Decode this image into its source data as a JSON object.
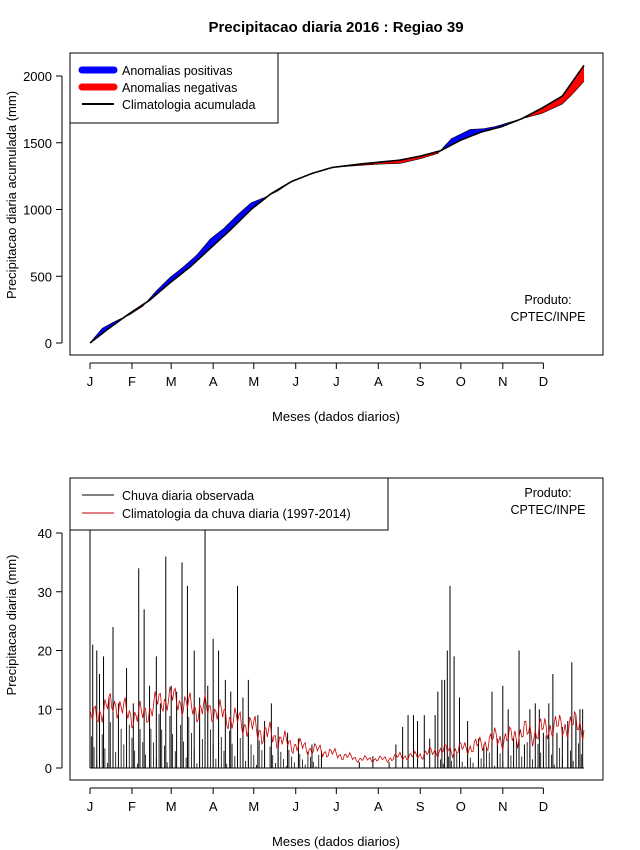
{
  "colors": {
    "positive": "#0000FF",
    "negative": "#FF0000",
    "climatology": "#000000",
    "observed": "#000000",
    "clim_daily": "#CC0000"
  },
  "chart_data": [
    {
      "type": "area",
      "title": "Precipitacao diaria 2016 : Regiao 39",
      "xlabel": "Meses (dados diarios)",
      "ylabel": "Precipitacao diaria acumulada (mm)",
      "month_labels": [
        "J",
        "F",
        "M",
        "A",
        "M",
        "J",
        "J",
        "A",
        "S",
        "O",
        "N",
        "D"
      ],
      "month_start_days": [
        1,
        32,
        61,
        92,
        122,
        153,
        183,
        214,
        245,
        275,
        306,
        336
      ],
      "xlim": [
        1,
        366
      ],
      "ylim": [
        0,
        2100
      ],
      "yticks": [
        0,
        500,
        1000,
        1500,
        2000
      ],
      "legend_position": "top-left",
      "legend": [
        "Anomalias positivas",
        "Anomalias negativas",
        "Climatologia acumulada"
      ],
      "credit": [
        "Produto:",
        "CPTEC/INPE"
      ],
      "climatology_knots": [
        [
          1,
          0
        ],
        [
          15,
          110
        ],
        [
          30,
          220
        ],
        [
          45,
          320
        ],
        [
          60,
          450
        ],
        [
          75,
          570
        ],
        [
          91,
          720
        ],
        [
          105,
          850
        ],
        [
          120,
          1000
        ],
        [
          135,
          1120
        ],
        [
          150,
          1210
        ],
        [
          165,
          1270
        ],
        [
          180,
          1315
        ],
        [
          200,
          1340
        ],
        [
          215,
          1355
        ],
        [
          230,
          1370
        ],
        [
          245,
          1400
        ],
        [
          260,
          1440
        ],
        [
          275,
          1520
        ],
        [
          290,
          1580
        ],
        [
          305,
          1620
        ],
        [
          320,
          1680
        ],
        [
          335,
          1760
        ],
        [
          350,
          1850
        ],
        [
          366,
          2080
        ]
      ],
      "observed_knots": [
        [
          1,
          0
        ],
        [
          10,
          110
        ],
        [
          20,
          165
        ],
        [
          30,
          210
        ],
        [
          40,
          275
        ],
        [
          50,
          390
        ],
        [
          60,
          490
        ],
        [
          70,
          570
        ],
        [
          80,
          660
        ],
        [
          90,
          780
        ],
        [
          100,
          860
        ],
        [
          110,
          960
        ],
        [
          120,
          1050
        ],
        [
          130,
          1090
        ],
        [
          140,
          1140
        ],
        [
          150,
          1210
        ],
        [
          165,
          1270
        ],
        [
          180,
          1315
        ],
        [
          200,
          1330
        ],
        [
          215,
          1340
        ],
        [
          230,
          1345
        ],
        [
          245,
          1380
        ],
        [
          258,
          1420
        ],
        [
          268,
          1530
        ],
        [
          282,
          1600
        ],
        [
          292,
          1605
        ],
        [
          300,
          1620
        ],
        [
          310,
          1650
        ],
        [
          320,
          1680
        ],
        [
          335,
          1720
        ],
        [
          350,
          1790
        ],
        [
          358,
          1870
        ],
        [
          366,
          1960
        ]
      ]
    },
    {
      "type": "line",
      "xlabel": "Meses (dados diarios)",
      "ylabel": "Precipitacao diaria (mm)",
      "month_labels": [
        "J",
        "F",
        "M",
        "A",
        "M",
        "J",
        "J",
        "A",
        "S",
        "O",
        "N",
        "D"
      ],
      "month_start_days": [
        1,
        32,
        61,
        92,
        122,
        153,
        183,
        214,
        245,
        275,
        306,
        336
      ],
      "xlim": [
        1,
        366
      ],
      "ylim": [
        0,
        45
      ],
      "yticks": [
        0,
        10,
        20,
        30,
        40
      ],
      "legend_position": "top-left",
      "legend": [
        "Chuva diaria observada",
        "Climatologia da chuva diaria (1997-2014)"
      ],
      "credit": [
        "Produto:",
        "CPTEC/INPE"
      ],
      "observed_peaks": [
        [
          1,
          42
        ],
        [
          3,
          21
        ],
        [
          6,
          20
        ],
        [
          8,
          16
        ],
        [
          11,
          19
        ],
        [
          15,
          12
        ],
        [
          18,
          24
        ],
        [
          22,
          11
        ],
        [
          28,
          17
        ],
        [
          33,
          11
        ],
        [
          37,
          34
        ],
        [
          41,
          27
        ],
        [
          45,
          14
        ],
        [
          50,
          19
        ],
        [
          53,
          11
        ],
        [
          57,
          36
        ],
        [
          61,
          14
        ],
        [
          65,
          13
        ],
        [
          69,
          35
        ],
        [
          73,
          31
        ],
        [
          78,
          20
        ],
        [
          82,
          12
        ],
        [
          86,
          42
        ],
        [
          88,
          14
        ],
        [
          92,
          22
        ],
        [
          96,
          20
        ],
        [
          101,
          15
        ],
        [
          105,
          13
        ],
        [
          110,
          31
        ],
        [
          114,
          12
        ],
        [
          118,
          15
        ],
        [
          125,
          9
        ],
        [
          130,
          8
        ],
        [
          135,
          11
        ],
        [
          140,
          7
        ],
        [
          147,
          6
        ],
        [
          155,
          5
        ],
        [
          165,
          4
        ],
        [
          172,
          3
        ],
        [
          200,
          1
        ],
        [
          210,
          2
        ],
        [
          222,
          1
        ],
        [
          227,
          4
        ],
        [
          232,
          7
        ],
        [
          236,
          9
        ],
        [
          240,
          9
        ],
        [
          243,
          8
        ],
        [
          248,
          9
        ],
        [
          252,
          5
        ],
        [
          256,
          9
        ],
        [
          258,
          13
        ],
        [
          261,
          15
        ],
        [
          263,
          15
        ],
        [
          265,
          20
        ],
        [
          267,
          31
        ],
        [
          270,
          19
        ],
        [
          274,
          12
        ],
        [
          280,
          8
        ],
        [
          288,
          5
        ],
        [
          292,
          4
        ],
        [
          298,
          13
        ],
        [
          302,
          5
        ],
        [
          306,
          14
        ],
        [
          310,
          10
        ],
        [
          314,
          5
        ],
        [
          318,
          20
        ],
        [
          322,
          4
        ],
        [
          326,
          10
        ],
        [
          330,
          11
        ],
        [
          333,
          10
        ],
        [
          336,
          6
        ],
        [
          340,
          11
        ],
        [
          343,
          16
        ],
        [
          346,
          6
        ],
        [
          350,
          7
        ],
        [
          354,
          8
        ],
        [
          357,
          18
        ],
        [
          360,
          9
        ],
        [
          363,
          10
        ],
        [
          365,
          10
        ]
      ],
      "clim_daily_knots": [
        [
          1,
          8
        ],
        [
          10,
          10
        ],
        [
          20,
          11
        ],
        [
          30,
          9
        ],
        [
          40,
          9
        ],
        [
          50,
          11
        ],
        [
          60,
          12
        ],
        [
          70,
          11
        ],
        [
          80,
          10
        ],
        [
          90,
          10
        ],
        [
          100,
          9
        ],
        [
          110,
          8
        ],
        [
          120,
          7
        ],
        [
          130,
          6
        ],
        [
          140,
          5
        ],
        [
          150,
          4
        ],
        [
          160,
          3.5
        ],
        [
          170,
          3
        ],
        [
          180,
          2.5
        ],
        [
          190,
          2
        ],
        [
          200,
          1.5
        ],
        [
          210,
          1.5
        ],
        [
          220,
          1.5
        ],
        [
          230,
          2
        ],
        [
          240,
          2
        ],
        [
          250,
          2.5
        ],
        [
          260,
          3
        ],
        [
          270,
          3
        ],
        [
          280,
          3.5
        ],
        [
          290,
          4
        ],
        [
          300,
          5
        ],
        [
          310,
          5
        ],
        [
          320,
          6
        ],
        [
          330,
          6
        ],
        [
          340,
          7
        ],
        [
          350,
          7
        ],
        [
          360,
          7.5
        ],
        [
          366,
          7
        ]
      ]
    }
  ]
}
